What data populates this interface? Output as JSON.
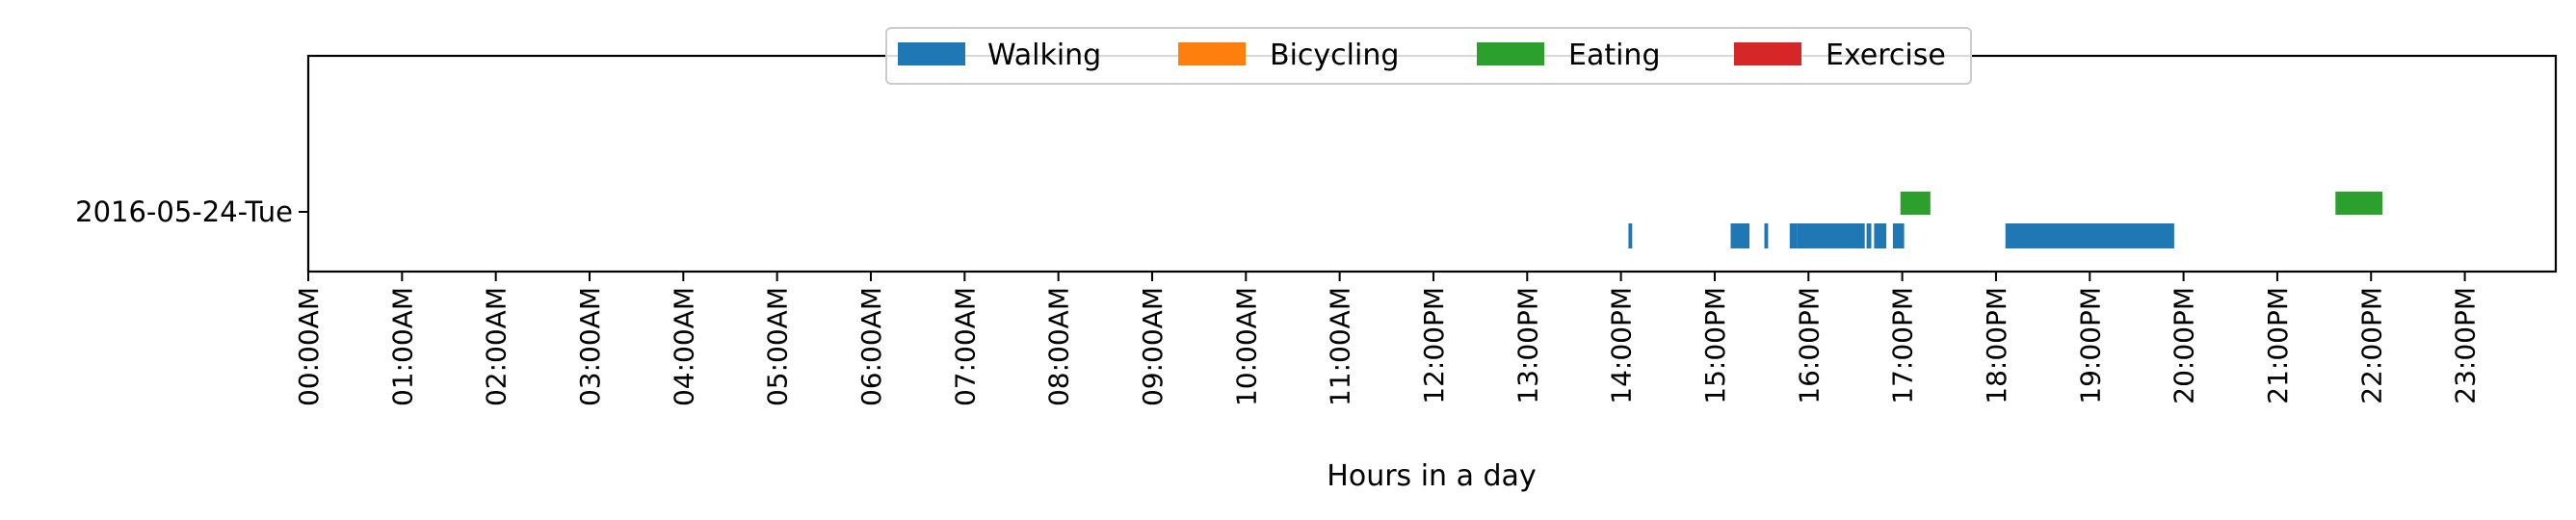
{
  "chart_data": {
    "type": "timeline",
    "title": "",
    "xlabel": "Hours in a day",
    "ylabel": "",
    "x_range_hours": [
      0,
      24
    ],
    "x_tick_hours": [
      0,
      1,
      2,
      3,
      4,
      5,
      6,
      7,
      8,
      9,
      10,
      11,
      12,
      13,
      14,
      15,
      16,
      17,
      18,
      19,
      20,
      21,
      22,
      23
    ],
    "x_tick_labels": [
      "00:00AM",
      "01:00AM",
      "02:00AM",
      "03:00AM",
      "04:00AM",
      "05:00AM",
      "06:00AM",
      "07:00AM",
      "08:00AM",
      "09:00AM",
      "10:00AM",
      "11:00AM",
      "12:00PM",
      "13:00PM",
      "14:00PM",
      "15:00PM",
      "16:00PM",
      "17:00PM",
      "18:00PM",
      "19:00PM",
      "20:00PM",
      "21:00PM",
      "22:00PM",
      "23:00PM"
    ],
    "y_categories": [
      "2016-05-24-Tue"
    ],
    "legend_position": "top-center",
    "grid": false,
    "series": [
      {
        "name": "Walking",
        "color": "#1f77b4",
        "lane": "lower",
        "intervals": [
          [
            14.08,
            14.12
          ],
          [
            15.17,
            15.37
          ],
          [
            15.53,
            15.57
          ],
          [
            15.8,
            15.88
          ],
          [
            15.88,
            16.6
          ],
          [
            16.62,
            16.67
          ],
          [
            16.7,
            16.83
          ],
          [
            16.9,
            17.02
          ],
          [
            18.1,
            18.55
          ],
          [
            18.55,
            19.9
          ]
        ]
      },
      {
        "name": "Bicycling",
        "color": "#ff7f0e",
        "lane": "lower",
        "intervals": []
      },
      {
        "name": "Eating",
        "color": "#2ca02c",
        "lane": "upper",
        "intervals": [
          [
            16.98,
            17.3
          ],
          [
            21.62,
            22.12
          ]
        ]
      },
      {
        "name": "Exercise",
        "color": "#d62728",
        "lane": "lower",
        "intervals": []
      }
    ]
  }
}
